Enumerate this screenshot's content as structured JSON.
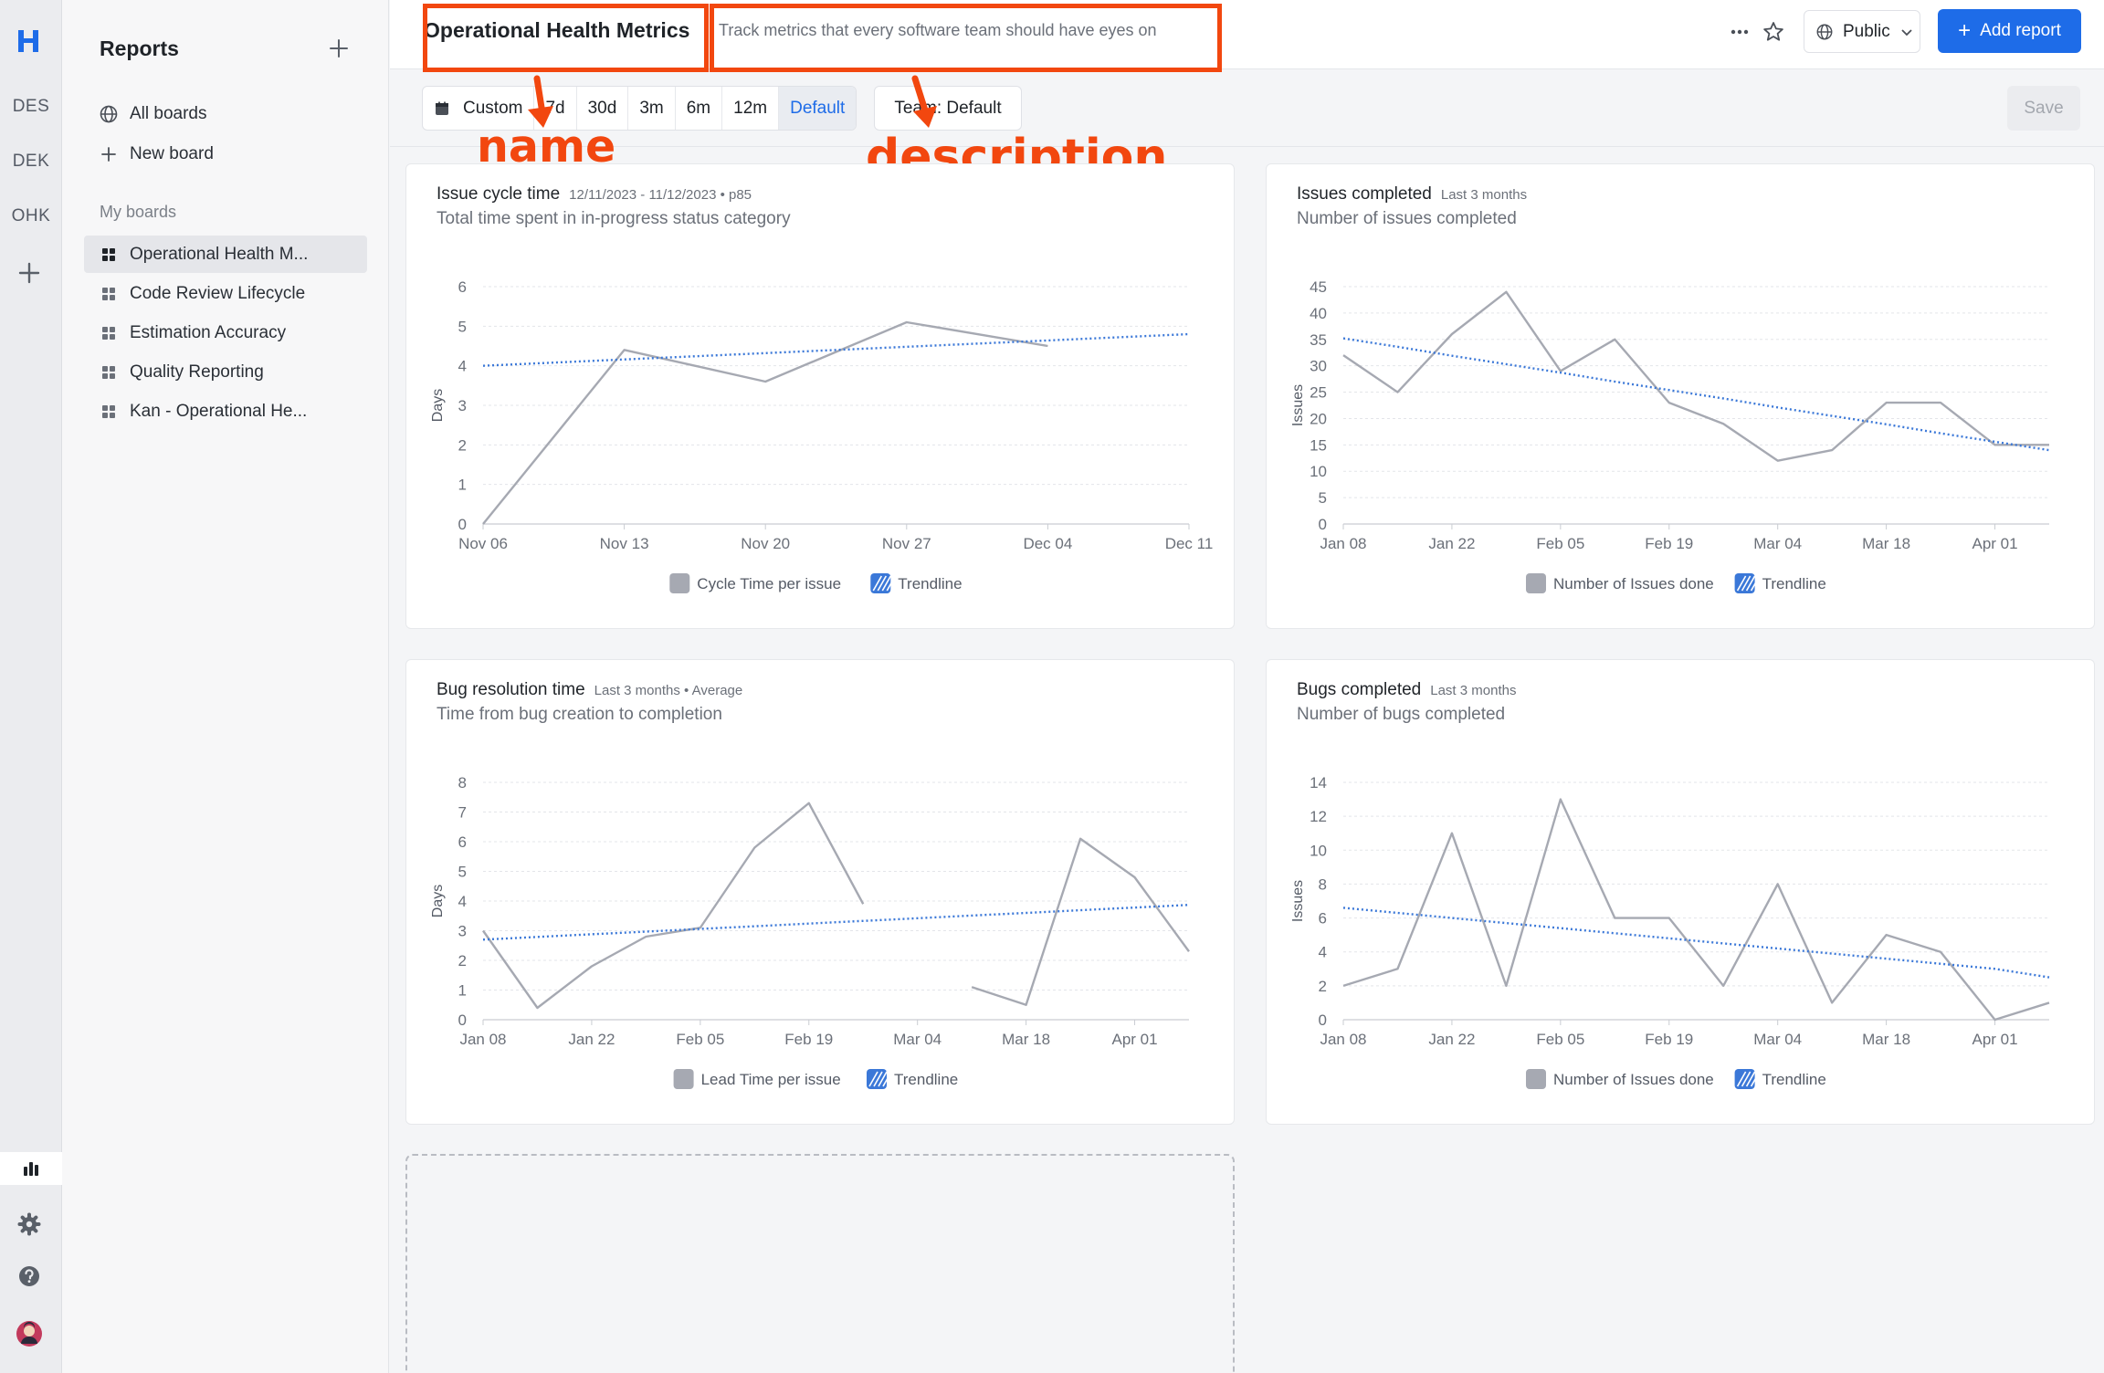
{
  "rail": {
    "workspaces": [
      "DES",
      "DEK",
      "OHK"
    ]
  },
  "sidebar": {
    "title": "Reports",
    "nav": [
      {
        "label": "All boards",
        "icon": "globe-icon"
      },
      {
        "label": "New board",
        "icon": "plus-icon"
      }
    ],
    "section_label": "My boards",
    "boards": [
      {
        "label": "Operational Health M...",
        "active": true
      },
      {
        "label": "Code Review Lifecycle",
        "active": false
      },
      {
        "label": "Estimation Accuracy",
        "active": false
      },
      {
        "label": "Quality Reporting",
        "active": false
      },
      {
        "label": "Kan - Operational He...",
        "active": false
      }
    ]
  },
  "header": {
    "board_name": "Operational Health Metrics",
    "board_description": "Track metrics that every software team should have eyes on",
    "visibility": "Public",
    "add_report": "Add report"
  },
  "annotations": {
    "name": "name",
    "description": "description"
  },
  "toolbar": {
    "ranges": [
      "Custom",
      "7d",
      "30d",
      "3m",
      "6m",
      "12m",
      "Default"
    ],
    "selected_range": "Default",
    "team_label": "Team: Default",
    "save": "Save"
  },
  "colors": {
    "accent": "#1e6ce8",
    "annotation": "#f2470f",
    "series_line": "#a6a9b2",
    "trendline": "#3b78d8"
  },
  "cards": [
    {
      "title": "Issue cycle time",
      "meta": "12/11/2023 - 11/12/2023 • p85",
      "subtitle": "Total time spent in in-progress status category",
      "legend_series": "Cycle Time per issue",
      "legend_trend": "Trendline"
    },
    {
      "title": "Issues completed",
      "meta": "Last 3 months",
      "subtitle": "Number of issues completed",
      "legend_series": "Number of Issues done",
      "legend_trend": "Trendline"
    },
    {
      "title": "Bug resolution time",
      "meta": "Last 3 months • Average",
      "subtitle": "Time from bug creation to completion",
      "legend_series": "Lead Time per issue",
      "legend_trend": "Trendline"
    },
    {
      "title": "Bugs completed",
      "meta": "Last 3 months",
      "subtitle": "Number of bugs completed",
      "legend_series": "Number of Issues done",
      "legend_trend": "Trendline"
    }
  ],
  "chart_data": [
    {
      "type": "line",
      "title": "Issue cycle time",
      "ylabel": "Days",
      "x": [
        "Nov 06",
        "Nov 13",
        "Nov 20",
        "Nov 27",
        "Dec 04",
        "Dec 11"
      ],
      "ylim": [
        0,
        6
      ],
      "yticks": [
        0,
        1,
        2,
        3,
        4,
        5,
        6
      ],
      "series": [
        {
          "name": "Cycle Time per issue",
          "values": [
            0,
            4.4,
            3.6,
            5.1,
            4.5,
            null
          ]
        },
        {
          "name": "Trendline",
          "values": [
            4.0,
            4.16,
            4.32,
            4.48,
            4.64,
            4.8
          ]
        }
      ],
      "legend": "bottom",
      "grid": true
    },
    {
      "type": "line",
      "title": "Issues completed",
      "ylabel": "Issues",
      "x": [
        "Jan 08",
        "Jan 15",
        "Jan 22",
        "Jan 29",
        "Feb 05",
        "Feb 12",
        "Feb 19",
        "Feb 26",
        "Mar 04",
        "Mar 11",
        "Mar 18",
        "Mar 25",
        "Apr 01",
        "Apr 08"
      ],
      "xticks": [
        "Jan 08",
        "Jan 22",
        "Feb 05",
        "Feb 19",
        "Mar 04",
        "Mar 18",
        "Apr 01"
      ],
      "ylim": [
        0,
        45
      ],
      "yticks": [
        0,
        5,
        10,
        15,
        20,
        25,
        30,
        35,
        40,
        45
      ],
      "series": [
        {
          "name": "Number of Issues done",
          "values": [
            32,
            25,
            36,
            44,
            29,
            35,
            23,
            19,
            12,
            14,
            23,
            23,
            15,
            15
          ]
        },
        {
          "name": "Trendline",
          "values": [
            35.2,
            33.6,
            31.9,
            30.3,
            28.7,
            27.0,
            25.4,
            23.8,
            22.1,
            20.5,
            18.9,
            17.2,
            15.6,
            14.0
          ]
        }
      ],
      "legend": "bottom",
      "grid": true
    },
    {
      "type": "line",
      "title": "Bug resolution time",
      "ylabel": "Days",
      "x": [
        "Jan 08",
        "Jan 15",
        "Jan 22",
        "Jan 29",
        "Feb 05",
        "Feb 12",
        "Feb 19",
        "Feb 26",
        "Mar 04",
        "Mar 11",
        "Mar 18",
        "Mar 25",
        "Apr 01",
        "Apr 08"
      ],
      "xticks": [
        "Jan 08",
        "Jan 22",
        "Feb 05",
        "Feb 19",
        "Mar 04",
        "Mar 18",
        "Apr 01"
      ],
      "ylim": [
        0,
        8
      ],
      "yticks": [
        0,
        1,
        2,
        3,
        4,
        5,
        6,
        7,
        8
      ],
      "series": [
        {
          "name": "Lead Time per issue",
          "values": [
            3.0,
            0.4,
            1.8,
            2.8,
            3.1,
            5.8,
            7.3,
            3.9,
            null,
            1.1,
            0.5,
            6.1,
            4.8,
            2.3
          ]
        },
        {
          "name": "Trendline",
          "values": [
            2.7,
            2.79,
            2.88,
            2.97,
            3.06,
            3.15,
            3.24,
            3.33,
            3.42,
            3.51,
            3.6,
            3.69,
            3.78,
            3.87
          ]
        }
      ],
      "legend": "bottom",
      "grid": true
    },
    {
      "type": "line",
      "title": "Bugs completed",
      "ylabel": "Issues",
      "x": [
        "Jan 08",
        "Jan 15",
        "Jan 22",
        "Jan 29",
        "Feb 05",
        "Feb 12",
        "Feb 19",
        "Feb 26",
        "Mar 04",
        "Mar 11",
        "Mar 18",
        "Mar 25",
        "Apr 01",
        "Apr 08"
      ],
      "xticks": [
        "Jan 08",
        "Jan 22",
        "Feb 05",
        "Feb 19",
        "Mar 04",
        "Mar 18",
        "Apr 01"
      ],
      "ylim": [
        0,
        14
      ],
      "yticks": [
        0,
        2,
        4,
        6,
        8,
        10,
        12,
        14
      ],
      "series": [
        {
          "name": "Number of Issues done",
          "values": [
            2,
            3,
            11,
            2,
            13,
            6,
            6,
            2,
            8,
            1,
            5,
            4,
            0,
            1
          ]
        },
        {
          "name": "Trendline",
          "values": [
            6.6,
            6.3,
            6.0,
            5.7,
            5.4,
            5.1,
            4.8,
            4.5,
            4.2,
            3.9,
            3.6,
            3.3,
            3.0,
            2.5
          ]
        }
      ],
      "legend": "bottom",
      "grid": true
    }
  ]
}
